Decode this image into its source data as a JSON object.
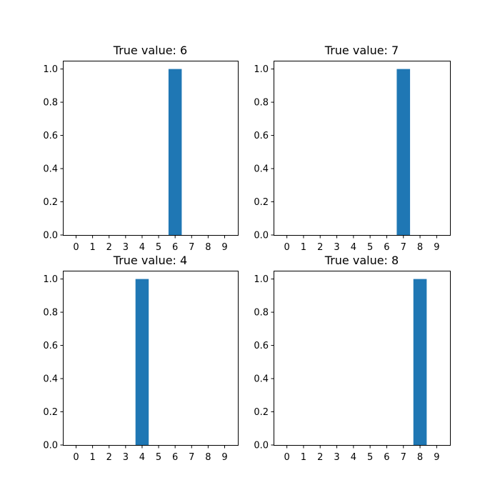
{
  "chart_data": [
    {
      "type": "bar",
      "title": "True value: 6",
      "categories": [
        "0",
        "1",
        "2",
        "3",
        "4",
        "5",
        "6",
        "7",
        "8",
        "9"
      ],
      "values": [
        0,
        0,
        0,
        0,
        0,
        0,
        1,
        0,
        0,
        0
      ],
      "ylim": [
        0,
        1.05
      ],
      "yticks": [
        "0.0",
        "0.2",
        "0.4",
        "0.6",
        "0.8",
        "1.0"
      ],
      "bar_color": "#1f77b4",
      "grid": false
    },
    {
      "type": "bar",
      "title": "True value: 7",
      "categories": [
        "0",
        "1",
        "2",
        "3",
        "4",
        "5",
        "6",
        "7",
        "8",
        "9"
      ],
      "values": [
        0,
        0,
        0,
        0,
        0,
        0,
        0,
        1,
        0,
        0
      ],
      "ylim": [
        0,
        1.05
      ],
      "yticks": [
        "0.0",
        "0.2",
        "0.4",
        "0.6",
        "0.8",
        "1.0"
      ],
      "bar_color": "#1f77b4",
      "grid": false
    },
    {
      "type": "bar",
      "title": "True value: 4",
      "categories": [
        "0",
        "1",
        "2",
        "3",
        "4",
        "5",
        "6",
        "7",
        "8",
        "9"
      ],
      "values": [
        0,
        0,
        0,
        0,
        1,
        0,
        0,
        0,
        0,
        0
      ],
      "ylim": [
        0,
        1.05
      ],
      "yticks": [
        "0.0",
        "0.2",
        "0.4",
        "0.6",
        "0.8",
        "1.0"
      ],
      "bar_color": "#1f77b4",
      "grid": false
    },
    {
      "type": "bar",
      "title": "True value: 8",
      "categories": [
        "0",
        "1",
        "2",
        "3",
        "4",
        "5",
        "6",
        "7",
        "8",
        "9"
      ],
      "values": [
        0,
        0,
        0,
        0,
        0,
        0,
        0,
        0,
        1,
        0
      ],
      "ylim": [
        0,
        1.05
      ],
      "yticks": [
        "0.0",
        "0.2",
        "0.4",
        "0.6",
        "0.8",
        "1.0"
      ],
      "bar_color": "#1f77b4",
      "grid": false
    }
  ]
}
